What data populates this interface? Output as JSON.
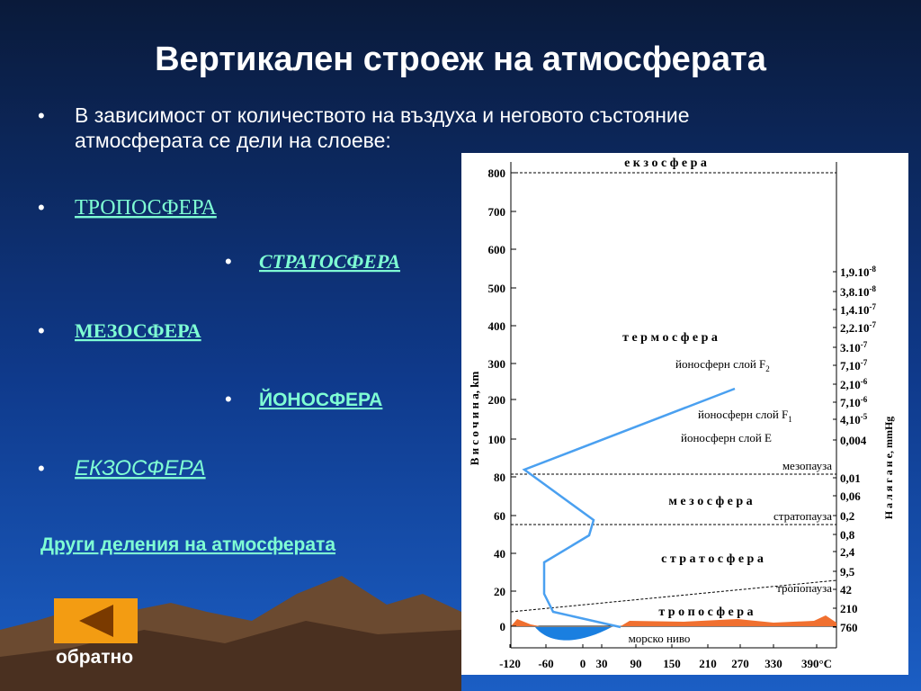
{
  "slide": {
    "title": "Вертикален строеж на атмосферата",
    "intro_lines": [
      "В зависимост от количеството на въздуха и неговото състояние",
      "атмосферата се дели на слоеве:"
    ],
    "links": [
      "ТРОПОСФЕРА",
      "СТРАТОСФЕРА",
      "МЕЗОСФЕРА",
      "ЙОНОСФЕРА",
      "ЕКЗОСФЕРА"
    ],
    "other_link": "Други деления на атмосферата",
    "back_button": "обратно"
  },
  "diagram": {
    "y_axis_label": "В и с о ч и н а, km",
    "y_ticks": [
      "800",
      "700",
      "600",
      "500",
      "400",
      "300",
      "200",
      "100",
      "80",
      "60",
      "40",
      "20",
      "0"
    ],
    "x_ticks": [
      "-120",
      "-60",
      "0",
      "30",
      "90",
      "150",
      "210",
      "270",
      "330",
      "390°C"
    ],
    "pressure_axis_label": "Н а л я г а н е, mmHg",
    "pressure_labels": [
      {
        "text": "1,9.10",
        "sup": "-8"
      },
      {
        "text": "3,8.10",
        "sup": "-8"
      },
      {
        "text": "1,4.10",
        "sup": "-7"
      },
      {
        "text": "2,2.10",
        "sup": "-7"
      },
      {
        "text": "3.10",
        "sup": "-7"
      },
      {
        "text": "7,10",
        "sup": "-7"
      },
      {
        "text": "2,10",
        "sup": "-6"
      },
      {
        "text": "7,10",
        "sup": "-6"
      },
      {
        "text": "4,10",
        "sup": "-5"
      },
      {
        "text": "0,004"
      },
      {
        "text": "0,01"
      },
      {
        "text": "0,06"
      },
      {
        "text": "0,2"
      },
      {
        "text": "0,8"
      },
      {
        "text": "2,4"
      },
      {
        "text": "9,5"
      },
      {
        "text": "42"
      },
      {
        "text": "210"
      },
      {
        "text": "760"
      }
    ],
    "layers": [
      {
        "text": "е к з о с ф е р а"
      },
      {
        "text": "т е р м о с ф е р а"
      },
      {
        "text": "йоносферн слой F",
        "sub": "2"
      },
      {
        "text": "йоносферн слой F",
        "sub": "1"
      },
      {
        "text": "йоносферн слой Е"
      },
      {
        "text": "мезопауза"
      },
      {
        "text": "м е з о с ф е р а"
      },
      {
        "text": "стратопауза"
      },
      {
        "text": "с т р а т о с ф е р а"
      },
      {
        "text": "тропопауза"
      },
      {
        "text": "т р о п о с ф е р а"
      },
      {
        "text": "морско ниво"
      }
    ]
  }
}
